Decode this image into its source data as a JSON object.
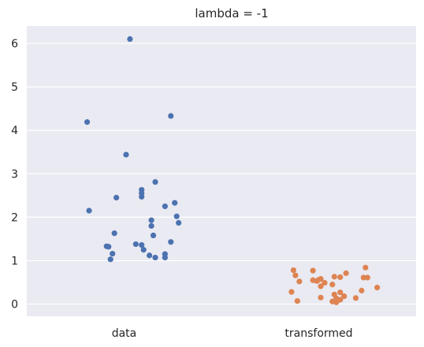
{
  "chart_data": {
    "type": "scatter",
    "kind": "stripplot",
    "title": "lambda = -1",
    "xlabel": "",
    "ylabel": "",
    "categories": [
      "data",
      "transformed"
    ],
    "yticks": [
      0,
      1,
      2,
      3,
      4,
      5,
      6
    ],
    "ylim": [
      -0.28,
      6.4
    ],
    "grid": true,
    "colors": {
      "data": "#4c72b0",
      "transformed": "#dd8452",
      "background": "#eaeaf2",
      "grid": "#ffffff"
    },
    "series": [
      {
        "category": "data",
        "points": [
          {
            "x": 0.03,
            "y": 6.1
          },
          {
            "x": -0.19,
            "y": 4.19
          },
          {
            "x": 0.24,
            "y": 4.33
          },
          {
            "x": 0.01,
            "y": 3.44
          },
          {
            "x": 0.16,
            "y": 2.81
          },
          {
            "x": 0.09,
            "y": 2.63
          },
          {
            "x": 0.09,
            "y": 2.55
          },
          {
            "x": 0.09,
            "y": 2.47
          },
          {
            "x": -0.04,
            "y": 2.45
          },
          {
            "x": 0.26,
            "y": 2.33
          },
          {
            "x": 0.21,
            "y": 2.25
          },
          {
            "x": -0.18,
            "y": 2.15
          },
          {
            "x": 0.27,
            "y": 2.02
          },
          {
            "x": 0.14,
            "y": 1.93
          },
          {
            "x": 0.28,
            "y": 1.87
          },
          {
            "x": 0.14,
            "y": 1.8
          },
          {
            "x": -0.05,
            "y": 1.63
          },
          {
            "x": 0.15,
            "y": 1.58
          },
          {
            "x": 0.24,
            "y": 1.43
          },
          {
            "x": 0.06,
            "y": 1.38
          },
          {
            "x": 0.09,
            "y": 1.36
          },
          {
            "x": -0.09,
            "y": 1.33
          },
          {
            "x": -0.08,
            "y": 1.32
          },
          {
            "x": 0.1,
            "y": 1.25
          },
          {
            "x": -0.06,
            "y": 1.16
          },
          {
            "x": 0.21,
            "y": 1.15
          },
          {
            "x": 0.13,
            "y": 1.12
          },
          {
            "x": 0.16,
            "y": 1.07
          },
          {
            "x": 0.21,
            "y": 1.07
          },
          {
            "x": -0.07,
            "y": 1.03
          }
        ]
      },
      {
        "category": "transformed",
        "points": [
          {
            "x": 0.24,
            "y": 0.84
          },
          {
            "x": -0.13,
            "y": 0.78
          },
          {
            "x": -0.03,
            "y": 0.77
          },
          {
            "x": 0.14,
            "y": 0.71
          },
          {
            "x": -0.12,
            "y": 0.66
          },
          {
            "x": 0.08,
            "y": 0.63
          },
          {
            "x": 0.11,
            "y": 0.62
          },
          {
            "x": 0.23,
            "y": 0.61
          },
          {
            "x": 0.25,
            "y": 0.61
          },
          {
            "x": 0.01,
            "y": 0.58
          },
          {
            "x": 0.0,
            "y": 0.56
          },
          {
            "x": -0.03,
            "y": 0.55
          },
          {
            "x": -0.01,
            "y": 0.53
          },
          {
            "x": -0.1,
            "y": 0.52
          },
          {
            "x": 0.03,
            "y": 0.49
          },
          {
            "x": 0.07,
            "y": 0.45
          },
          {
            "x": 0.01,
            "y": 0.41
          },
          {
            "x": 0.3,
            "y": 0.38
          },
          {
            "x": 0.22,
            "y": 0.31
          },
          {
            "x": -0.14,
            "y": 0.28
          },
          {
            "x": 0.11,
            "y": 0.27
          },
          {
            "x": 0.08,
            "y": 0.22
          },
          {
            "x": 0.13,
            "y": 0.18
          },
          {
            "x": 0.01,
            "y": 0.15
          },
          {
            "x": 0.19,
            "y": 0.14
          },
          {
            "x": 0.09,
            "y": 0.13
          },
          {
            "x": 0.11,
            "y": 0.1
          },
          {
            "x": -0.11,
            "y": 0.07
          },
          {
            "x": 0.07,
            "y": 0.06
          },
          {
            "x": 0.09,
            "y": 0.04
          }
        ]
      }
    ]
  }
}
